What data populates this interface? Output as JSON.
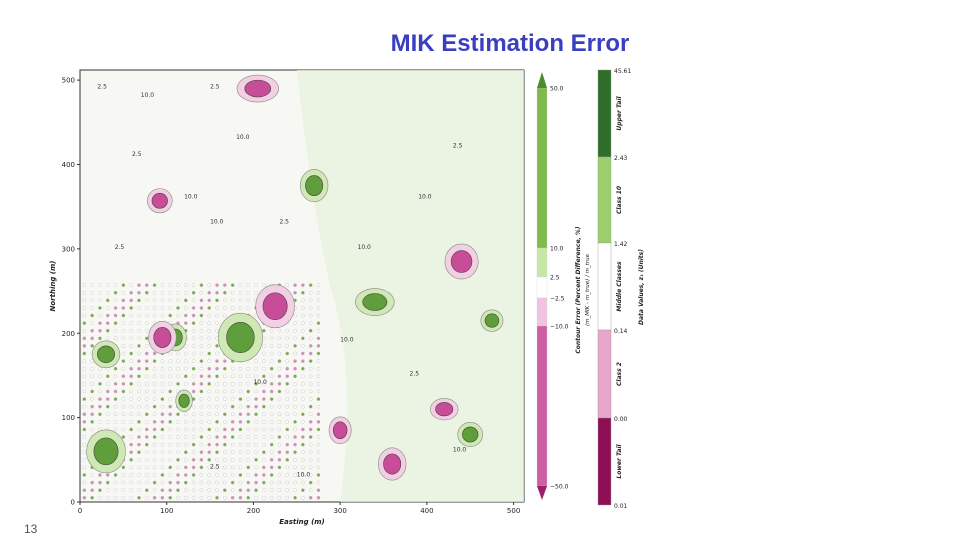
{
  "slide": {
    "title": "MIK Estimation Error",
    "page_number": "13"
  },
  "chart_data": {
    "type": "heatmap",
    "title": "",
    "xlabel": "Easting (m)",
    "ylabel": "Northing (m)",
    "xlim": [
      0,
      512
    ],
    "ylim": [
      0,
      512
    ],
    "x_ticks": [
      "0",
      "100",
      "200",
      "300",
      "400",
      "500"
    ],
    "y_ticks": [
      "0",
      "100",
      "200",
      "300",
      "400",
      "500"
    ],
    "contour_labels": [
      "2.5",
      "10.0",
      "2.5",
      "10.0",
      "2.5",
      "10.0",
      "2.5",
      "10.0",
      "2.5",
      "10.0",
      "10.0",
      "2.5",
      "10.0",
      "10.0",
      "2.5",
      "10.0",
      "2.5",
      "10.0"
    ],
    "error_colorbar": {
      "label": "Contour Error (Percent Difference, %)",
      "sublabel": "(m_MIK - m_true) / m_true",
      "ticks": [
        "50.0",
        "10.0",
        "2.5",
        "−2.5",
        "−10.0",
        "−50.0"
      ],
      "bands": [
        {
          "from": 10,
          "to": 50,
          "color": "#7fba4a"
        },
        {
          "from": 2.5,
          "to": 10,
          "color": "#c8e6a8"
        },
        {
          "from": -2.5,
          "to": 2.5,
          "color": "#ffffff"
        },
        {
          "from": -10,
          "to": -2.5,
          "color": "#f0c4de"
        },
        {
          "from": -50,
          "to": -10,
          "color": "#cf5fa5"
        }
      ]
    },
    "data_colorbar": {
      "label": "Data Values, z₁ (Units)",
      "ticks": [
        "45.61",
        "2.43",
        "1.42",
        "0.14",
        "0.00",
        "0.01"
      ],
      "classes": [
        "Upper Tail",
        "Class 10",
        "Middle Classes",
        "Class 2",
        "Lower Tail"
      ],
      "colors": [
        "#2f6e2a",
        "#9ccf6c",
        "#ffffff",
        "#e8a6cb",
        "#8e0f55"
      ]
    },
    "regions": [
      {
        "type": "green",
        "x": 30,
        "y": 60,
        "rx": 14,
        "ry": 16
      },
      {
        "type": "green",
        "x": 185,
        "y": 195,
        "rx": 16,
        "ry": 18
      },
      {
        "type": "green",
        "x": 270,
        "y": 375,
        "rx": 10,
        "ry": 12
      },
      {
        "type": "green",
        "x": 340,
        "y": 237,
        "rx": 14,
        "ry": 10
      },
      {
        "type": "green",
        "x": 110,
        "y": 195,
        "rx": 8,
        "ry": 10
      },
      {
        "type": "green",
        "x": 475,
        "y": 215,
        "rx": 8,
        "ry": 8
      },
      {
        "type": "green",
        "x": 120,
        "y": 120,
        "rx": 6,
        "ry": 8
      },
      {
        "type": "green",
        "x": 30,
        "y": 175,
        "rx": 10,
        "ry": 10
      },
      {
        "type": "green",
        "x": 450,
        "y": 80,
        "rx": 9,
        "ry": 9
      },
      {
        "type": "pink",
        "x": 225,
        "y": 232,
        "rx": 14,
        "ry": 16
      },
      {
        "type": "pink",
        "x": 440,
        "y": 285,
        "rx": 12,
        "ry": 13
      },
      {
        "type": "pink",
        "x": 205,
        "y": 490,
        "rx": 15,
        "ry": 10
      },
      {
        "type": "pink",
        "x": 92,
        "y": 357,
        "rx": 9,
        "ry": 9
      },
      {
        "type": "pink",
        "x": 95,
        "y": 195,
        "rx": 10,
        "ry": 12
      },
      {
        "type": "pink",
        "x": 360,
        "y": 45,
        "rx": 10,
        "ry": 12
      },
      {
        "type": "pink",
        "x": 420,
        "y": 110,
        "rx": 10,
        "ry": 8
      },
      {
        "type": "pink",
        "x": 300,
        "y": 85,
        "rx": 8,
        "ry": 10
      }
    ]
  }
}
